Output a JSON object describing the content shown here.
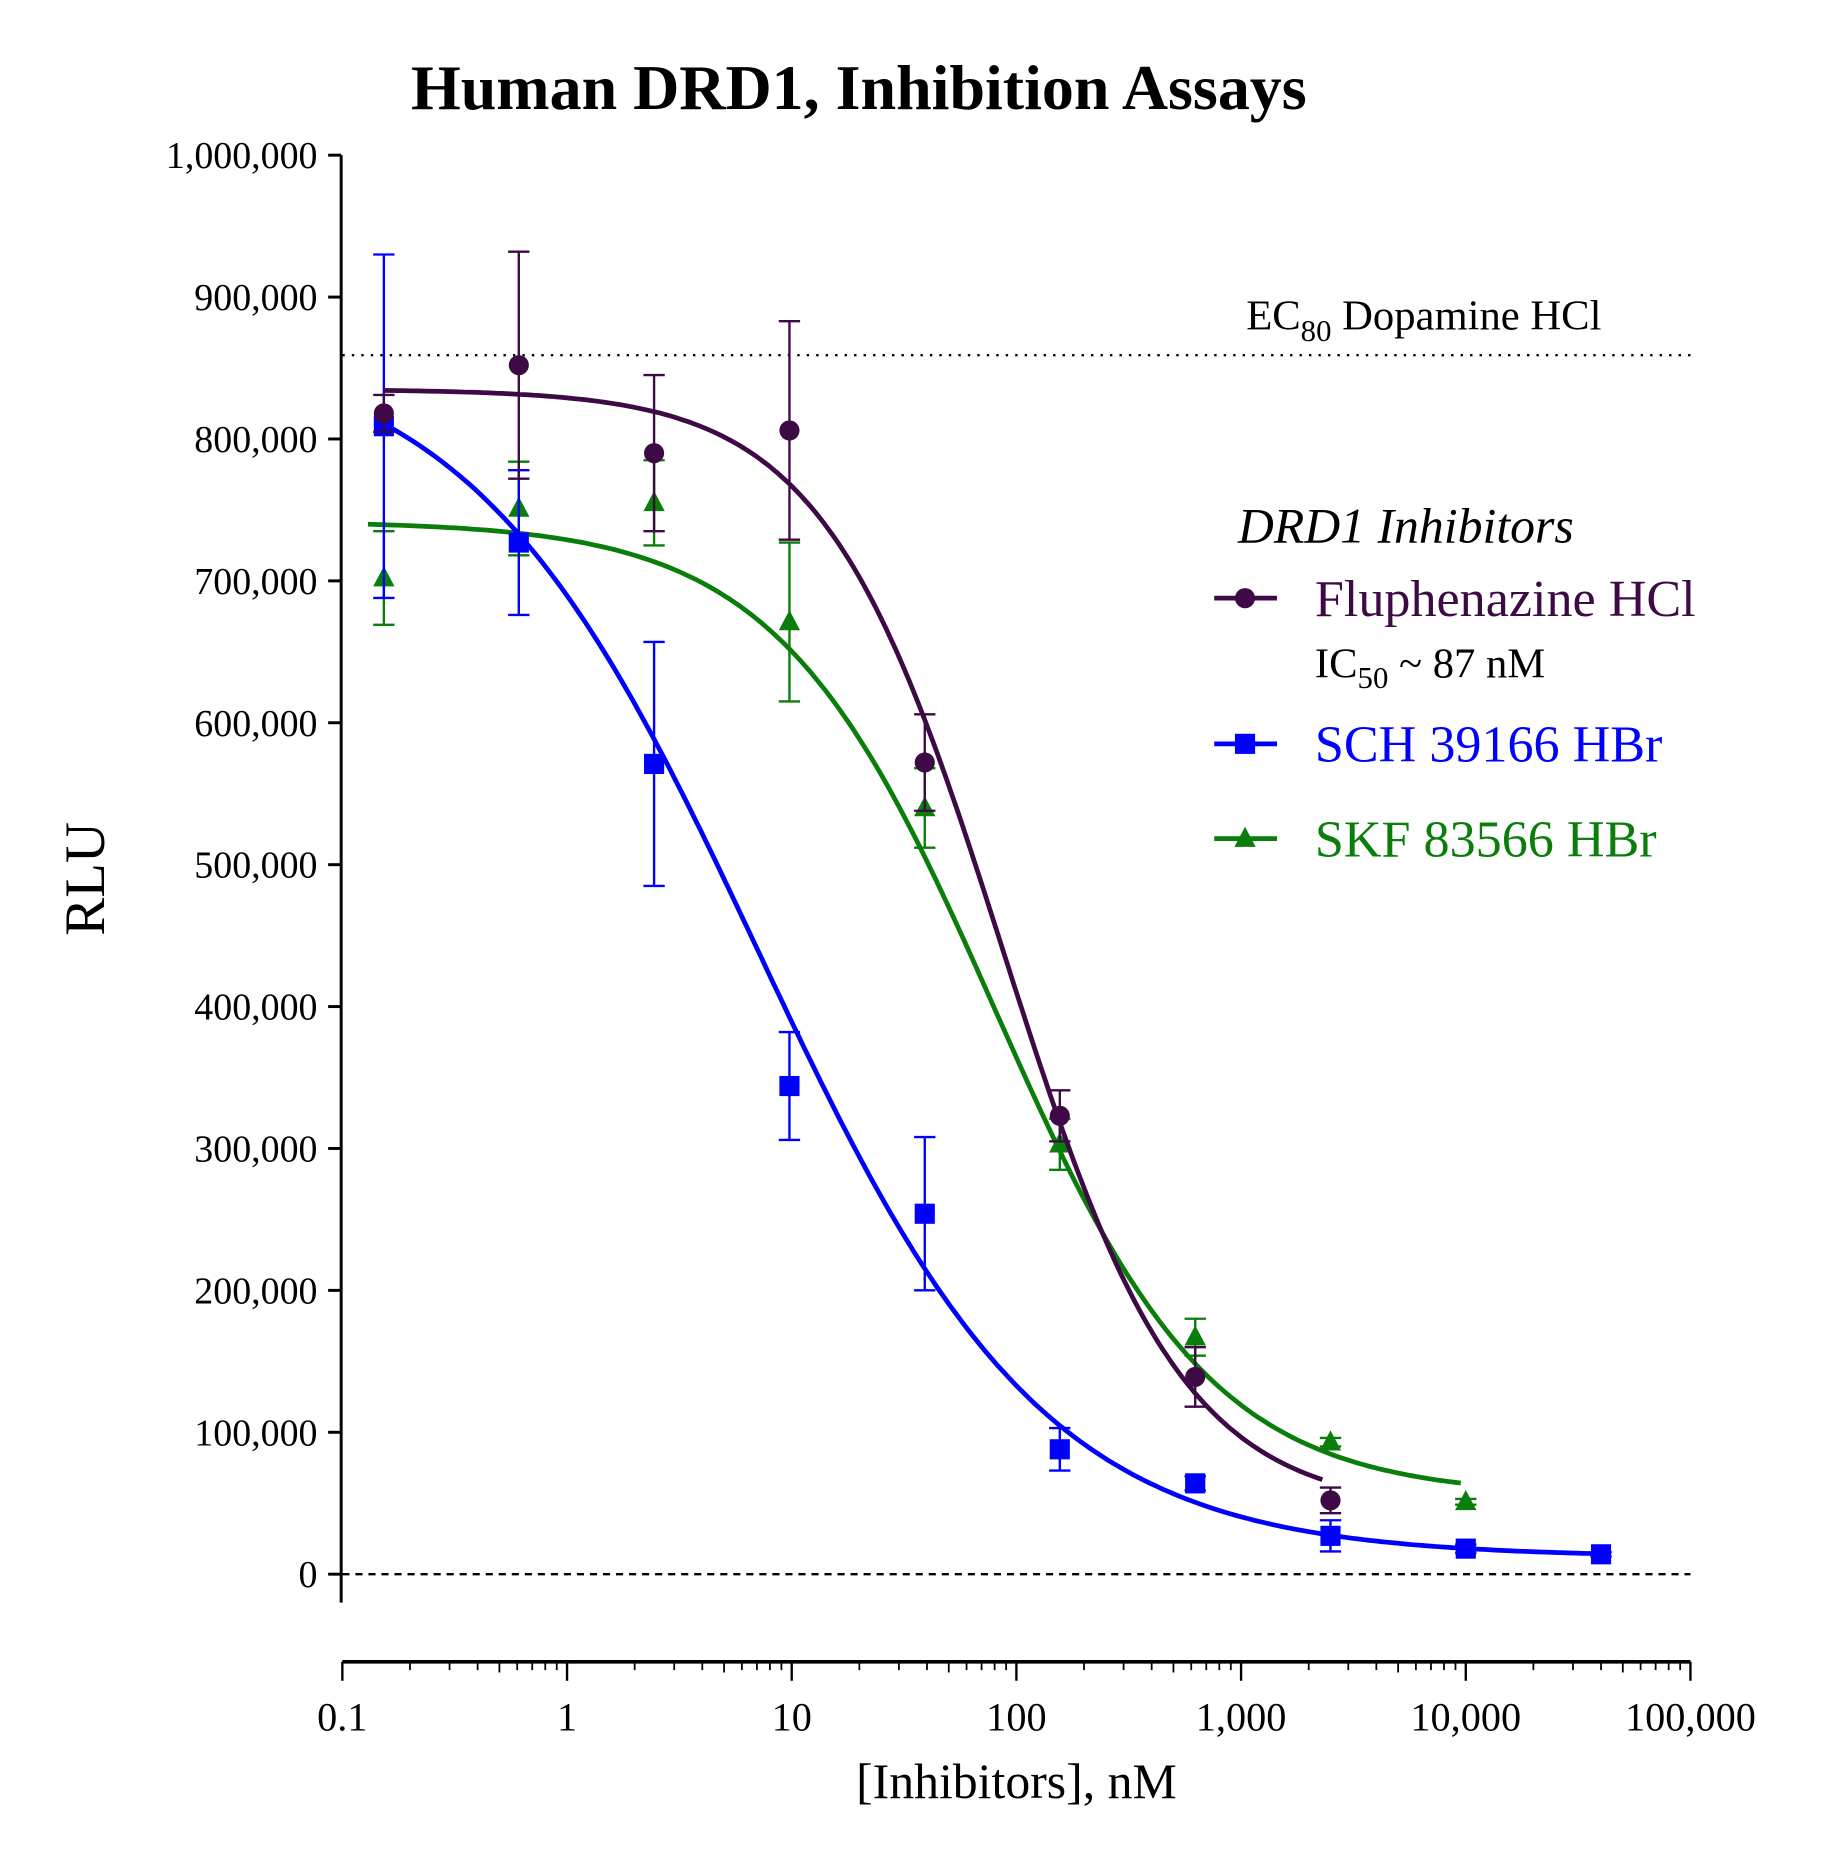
{
  "chart_data": {
    "type": "scatter",
    "title": "Human DRD1, Inhibition Assays",
    "xlabel": "[Inhibitors], nM",
    "ylabel": "RLU",
    "xscale": "log",
    "xlim": [
      0.1,
      100000
    ],
    "ylim": [
      0,
      1000000
    ],
    "grid": false,
    "x_ticks": [
      0.1,
      1,
      10,
      100,
      1000,
      10000,
      100000
    ],
    "x_tick_labels": [
      "0.1",
      "1",
      "10",
      "100",
      "1,000",
      "10,000",
      "100,000"
    ],
    "y_ticks": [
      0,
      100000,
      200000,
      300000,
      400000,
      500000,
      600000,
      700000,
      800000,
      900000,
      1000000
    ],
    "y_tick_labels": [
      "0",
      "100,000",
      "200,000",
      "300,000",
      "400,000",
      "500,000",
      "600,000",
      "700,000",
      "800,000",
      "900,000",
      "1,000,000"
    ],
    "reference_lines": [
      {
        "y": 859000,
        "style": "dotted",
        "label_main": "EC",
        "label_sub": "80",
        "label_rest": " Dopamine HCl"
      },
      {
        "y": 0,
        "style": "dashed"
      }
    ],
    "legend": {
      "title": "DRD1 Inhibitors",
      "placement": "right"
    },
    "series": [
      {
        "name": "Fluphenazine HCl",
        "note_main": "IC",
        "note_sub": "50",
        "note_rest": " ~ 87 nM",
        "color": "#3d0a45",
        "marker": "circle",
        "x": [
          0.153,
          0.61,
          2.44,
          9.77,
          39.1,
          156,
          625,
          2500
        ],
        "y": [
          818000,
          852000,
          790000,
          806000,
          572000,
          323000,
          139000,
          52000
        ],
        "err": [
          13000,
          80000,
          55000,
          77000,
          34000,
          18000,
          21000,
          9000
        ],
        "fit": {
          "top": 835000,
          "bottom": 45000,
          "ic50": 87,
          "hill": 1.09,
          "x_range": [
            0.153,
            2300
          ]
        }
      },
      {
        "name": "SCH 39166 HBr",
        "color": "#0000ff",
        "marker": "square",
        "x": [
          0.153,
          0.61,
          2.44,
          9.77,
          39.1,
          156,
          625,
          2500,
          10000,
          40000
        ],
        "y": [
          809000,
          727000,
          571000,
          344000,
          254000,
          88000,
          64000,
          27000,
          18000,
          14000
        ],
        "err": [
          121000,
          51000,
          86000,
          38000,
          54000,
          15000,
          5000,
          11000,
          3000,
          1500
        ],
        "fit": {
          "top": 870000,
          "bottom": 12000,
          "ic50": 7,
          "hill": 0.68,
          "x_range": [
            0.153,
            40000
          ]
        }
      },
      {
        "name": "SKF 83566 HBr",
        "color": "#0a7d0a",
        "marker": "triangle",
        "x": [
          0.153,
          0.61,
          2.44,
          9.77,
          39.1,
          156,
          625,
          2500,
          10000
        ],
        "y": [
          702000,
          751000,
          755000,
          671000,
          540000,
          303000,
          167000,
          93000,
          51000
        ],
        "err": [
          33000,
          33000,
          30000,
          56000,
          28000,
          18000,
          13000,
          3000,
          2000
        ],
        "fit": {
          "top": 742000,
          "bottom": 55000,
          "ic50": 80,
          "hill": 0.9,
          "x_range": [
            0.13,
            9500
          ]
        }
      }
    ]
  }
}
